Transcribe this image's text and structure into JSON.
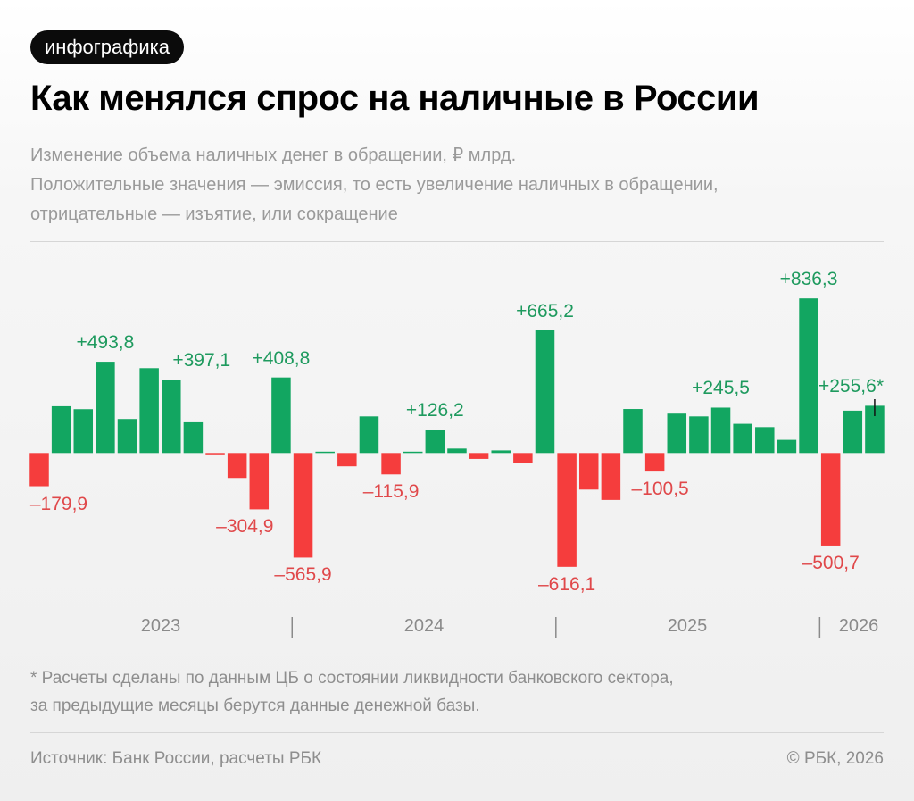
{
  "badge": "инфографика",
  "title": "Как менялся спрос на наличные в России",
  "subtitle": [
    "Изменение объема наличных денег в обращении, ₽ млрд.",
    "Положительные значения — эмиссия, то есть увеличение наличных в обращении,",
    "отрицательные — изъятие, или сокращение"
  ],
  "footnote": [
    "* Расчеты сделаны по данным ЦБ о состоянии ликвидности банковского сектора,",
    "за предыдущие месяцы берутся данные денежной базы."
  ],
  "source": "Источник: Банк России, расчеты РБК",
  "copyright": "© РБК, 2026",
  "colors": {
    "positive": "#12a661",
    "negative": "#f53d3d",
    "positive_label": "#1e9a5e",
    "negative_label": "#e0484a"
  },
  "chart_data": {
    "type": "bar",
    "unit": "₽ млрд",
    "year_labels": [
      "2023",
      "2024",
      "2025",
      "2026"
    ],
    "years": [
      {
        "year": "2023",
        "values": [
          -179.9,
          253,
          237,
          493.8,
          184,
          459,
          397.1,
          166,
          -4,
          -135,
          -304.9,
          408.8
        ]
      },
      {
        "year": "2024",
        "values": [
          -565.9,
          5,
          -72,
          198,
          -115.9,
          5,
          126.2,
          24,
          -32,
          14,
          -56,
          665.2
        ]
      },
      {
        "year": "2025",
        "values": [
          -616.1,
          -198,
          -254,
          238,
          -100.5,
          213,
          198,
          245.5,
          158,
          140,
          71,
          836.3
        ]
      },
      {
        "year": "2026",
        "values": [
          -500.7,
          229,
          255.6
        ]
      }
    ],
    "data_labels": [
      {
        "year": "2023",
        "month_index": 0,
        "text": "–179,9"
      },
      {
        "year": "2023",
        "month_index": 3,
        "text": "+493,8"
      },
      {
        "year": "2023",
        "month_index": 6,
        "text": "+397,1"
      },
      {
        "year": "2023",
        "month_index": 10,
        "text": "–304,9"
      },
      {
        "year": "2023",
        "month_index": 11,
        "text": "+408,8"
      },
      {
        "year": "2024",
        "month_index": 0,
        "text": "–565,9"
      },
      {
        "year": "2024",
        "month_index": 4,
        "text": "–115,9"
      },
      {
        "year": "2024",
        "month_index": 6,
        "text": "+126,2"
      },
      {
        "year": "2024",
        "month_index": 11,
        "text": "+665,2"
      },
      {
        "year": "2025",
        "month_index": 0,
        "text": "–616,1"
      },
      {
        "year": "2025",
        "month_index": 4,
        "text": "–100,5"
      },
      {
        "year": "2025",
        "month_index": 7,
        "text": "+245,5"
      },
      {
        "year": "2025",
        "month_index": 11,
        "text": "+836,3"
      },
      {
        "year": "2026",
        "month_index": 0,
        "text": "–500,7"
      },
      {
        "year": "2026",
        "month_index": 2,
        "text": "+255,6*"
      }
    ],
    "grid": false,
    "legend": "none"
  }
}
